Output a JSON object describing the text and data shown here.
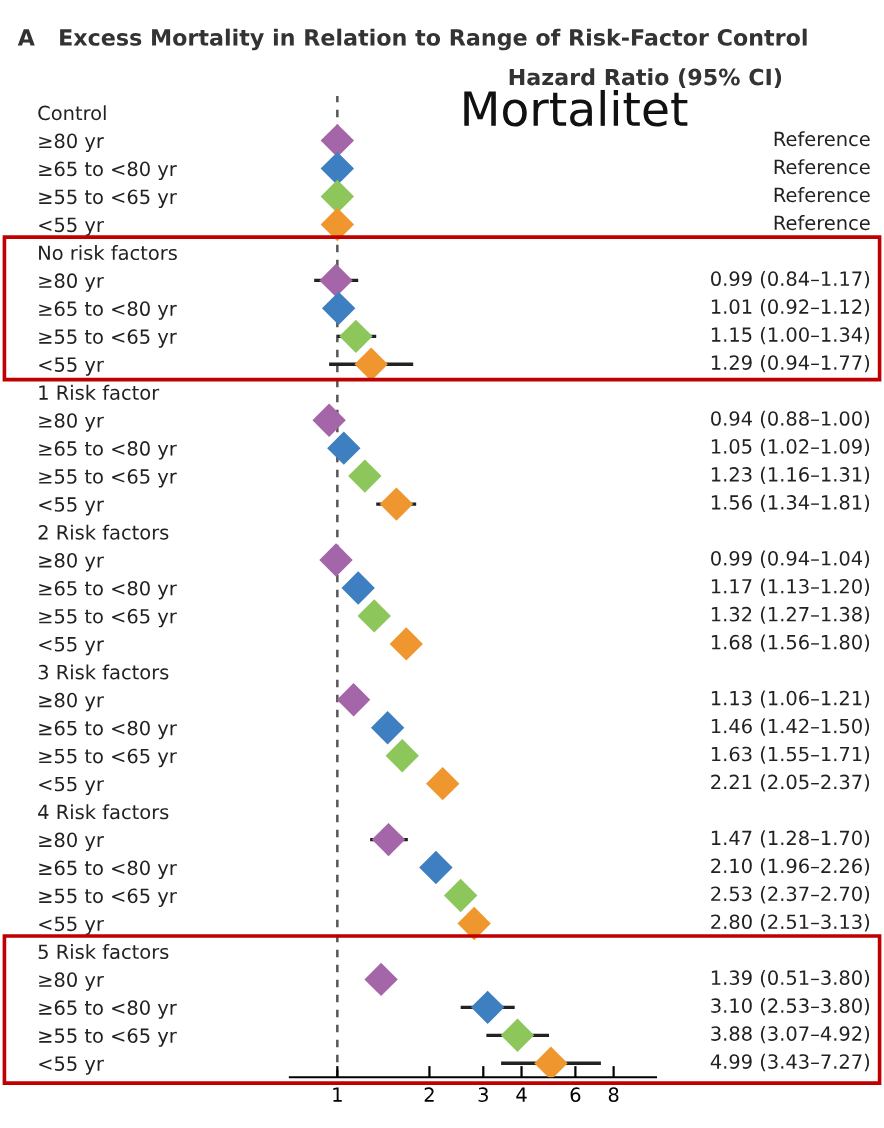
{
  "chart_data": {
    "type": "scatter",
    "orientation": "horizontal",
    "title": "A   Excess Mortality in Relation to Range of Risk-Factor Control",
    "subtitle": "Hazard Ratio (95% CI)",
    "annotations": [
      "Mortalitet"
    ],
    "categories": [
      "Control",
      "≥80 yr",
      "≥65 to <80 yr",
      "≥55 to <65 yr",
      "<55 yr",
      "No risk factors",
      "≥80 yr",
      "≥65 to <80 yr",
      "≥55 to <65 yr",
      "<55 yr",
      "1 Risk factor",
      "≥80 yr",
      "≥65 to <80 yr",
      "≥55 to <65 yr",
      "<55 yr",
      "2 Risk factors",
      "≥80 yr",
      "≥65 to <80 yr",
      "≥55 to <65 yr",
      "<55 yr",
      "3 Risk factors",
      "≥80 yr",
      "≥65 to <80 yr",
      "≥55 to <65 yr",
      "<55 yr",
      "4 Risk factors",
      "≥80 yr",
      "≥65 to <80 yr",
      "≥55 to <65 yr",
      "<55 yr",
      "5 Risk factors",
      "≥80 yr",
      "≥65 to <80 yr",
      "≥55 to <65 yr",
      "<55 yr"
    ],
    "values": [
      null,
      1,
      1,
      1,
      1,
      null,
      0.99,
      1.01,
      1.15,
      1.29,
      null,
      0.94,
      1.05,
      1.23,
      1.56,
      null,
      0.99,
      1.17,
      1.32,
      1.68,
      null,
      1.13,
      1.46,
      1.63,
      2.21,
      null,
      1.47,
      2.1,
      2.53,
      2.8,
      null,
      1.39,
      3.1,
      3.88,
      4.99
    ],
    "errors": [
      null,
      null,
      null,
      null,
      null,
      null,
      [
        0.84,
        1.17
      ],
      null,
      [
        1.0,
        1.34
      ],
      [
        0.94,
        1.77
      ],
      null,
      null,
      null,
      null,
      [
        1.34,
        1.81
      ],
      null,
      null,
      null,
      null,
      null,
      null,
      null,
      null,
      null,
      null,
      null,
      [
        1.28,
        1.7
      ],
      null,
      null,
      null,
      null,
      null,
      [
        2.53,
        3.8
      ],
      [
        3.07,
        4.92
      ],
      [
        3.43,
        7.27
      ]
    ],
    "colors": [
      null,
      "#a565a9",
      "#3d7fc1",
      "#8dc65b",
      "#f0962e",
      null,
      "#a565a9",
      "#3d7fc1",
      "#8dc65b",
      "#f0962e",
      null,
      "#a565a9",
      "#3d7fc1",
      "#8dc65b",
      "#f0962e",
      null,
      "#a565a9",
      "#3d7fc1",
      "#8dc65b",
      "#f0962e",
      null,
      "#a565a9",
      "#3d7fc1",
      "#8dc65b",
      "#f0962e",
      null,
      "#a565a9",
      "#3d7fc1",
      "#8dc65b",
      "#f0962e",
      null,
      "#a565a9",
      "#3d7fc1",
      "#8dc65b",
      "#f0962e"
    ],
    "value_labels": [
      null,
      "Reference",
      "Reference",
      "Reference",
      "Reference",
      null,
      "0.99 (0.84–1.17)",
      "1.01 (0.92–1.12)",
      "1.15 (1.00–1.34)",
      "1.29 (0.94–1.77)",
      null,
      "0.94 (0.88–1.00)",
      "1.05 (1.02–1.09)",
      "1.23 (1.16–1.31)",
      "1.56 (1.34–1.81)",
      null,
      "0.99 (0.94–1.04)",
      "1.17 (1.13–1.20)",
      "1.32 (1.27–1.38)",
      "1.68 (1.56–1.80)",
      null,
      "1.13 (1.06–1.21)",
      "1.46 (1.42–1.50)",
      "1.63 (1.55–1.71)",
      "2.21 (2.05–2.37)",
      null,
      "1.47 (1.28–1.70)",
      "2.10 (1.96–2.26)",
      "2.53 (2.37–2.70)",
      "2.80 (2.51–3.13)",
      null,
      "1.39 (0.51–3.80)",
      "3.10 (2.53–3.80)",
      "3.88 (3.07–4.92)",
      "4.99 (3.43–7.27)"
    ],
    "log": "x",
    "xlim": [
      0.7,
      11
    ],
    "xticks": [
      1,
      2,
      3,
      4,
      6,
      8
    ],
    "ref_lines": [
      {
        "axis": "x",
        "value": 1,
        "color": "#555555",
        "line_style": "dashed"
      }
    ],
    "marker": "diamond",
    "grid": false
  }
}
